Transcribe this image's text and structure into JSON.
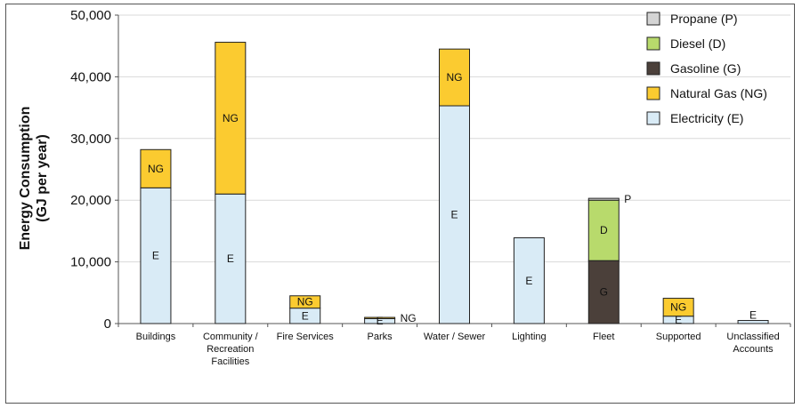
{
  "chart_data": {
    "type": "bar",
    "stacked": true,
    "ylabel_lines": [
      "Energy Consumption",
      "(GJ per year)"
    ],
    "ylim": [
      0,
      50000
    ],
    "yticks": [
      0,
      10000,
      20000,
      30000,
      40000,
      50000
    ],
    "ytick_labels": [
      "0",
      "10,000",
      "20,000",
      "30,000",
      "40,000",
      "50,000"
    ],
    "grid": true,
    "legend_position": "top-right",
    "categories": [
      [
        "Buildings"
      ],
      [
        "Community /",
        "Recreation",
        "Facilities"
      ],
      [
        "Fire Services"
      ],
      [
        "Parks"
      ],
      [
        "Water / Sewer"
      ],
      [
        "Lighting"
      ],
      [
        "Fleet"
      ],
      [
        "Supported"
      ],
      [
        "Unclassified",
        "Accounts"
      ]
    ],
    "series": [
      {
        "name": "Electricity (E)",
        "abbr": "E",
        "color": "#d9ebf6",
        "label_color": "#111111",
        "values": [
          22000,
          21000,
          2500,
          800,
          35300,
          13900,
          0,
          1200,
          500
        ]
      },
      {
        "name": "Natural Gas (NG)",
        "abbr": "NG",
        "color": "#fbcb30",
        "label_color": "#111111",
        "values": [
          6200,
          24600,
          2000,
          200,
          9200,
          0,
          0,
          2900,
          0
        ]
      },
      {
        "name": "Gasoline (G)",
        "abbr": "G",
        "color": "#4b403a",
        "label_color": "#ffffff",
        "values": [
          0,
          0,
          0,
          0,
          0,
          0,
          10200,
          0,
          0
        ]
      },
      {
        "name": "Diesel (D)",
        "abbr": "D",
        "color": "#b8da6c",
        "label_color": "#111111",
        "values": [
          0,
          0,
          0,
          0,
          0,
          0,
          9800,
          0,
          0
        ]
      },
      {
        "name": "Propane (P)",
        "abbr": "P",
        "color": "#d4d4d4",
        "label_color": "#111111",
        "values": [
          0,
          0,
          0,
          0,
          0,
          0,
          300,
          0,
          0
        ]
      }
    ],
    "legend_order": [
      "Propane (P)",
      "Diesel (D)",
      "Gasoline (G)",
      "Natural Gas (NG)",
      "Electricity (E)"
    ],
    "segment_labels": [
      {
        "category": 0,
        "series": "E",
        "text": "E"
      },
      {
        "category": 0,
        "series": "NG",
        "text": "NG"
      },
      {
        "category": 1,
        "series": "E",
        "text": "E"
      },
      {
        "category": 1,
        "series": "NG",
        "text": "NG"
      },
      {
        "category": 2,
        "series": "E",
        "text": "E"
      },
      {
        "category": 2,
        "series": "NG",
        "text": "NG"
      },
      {
        "category": 3,
        "series": "E",
        "text": "E"
      },
      {
        "category": 3,
        "series": "NG",
        "text": "NG",
        "outside": true
      },
      {
        "category": 4,
        "series": "E",
        "text": "E"
      },
      {
        "category": 4,
        "series": "NG",
        "text": "NG"
      },
      {
        "category": 5,
        "series": "E",
        "text": "E"
      },
      {
        "category": 6,
        "series": "G",
        "text": "G"
      },
      {
        "category": 6,
        "series": "D",
        "text": "D"
      },
      {
        "category": 6,
        "series": "P",
        "text": "P",
        "outside": true
      },
      {
        "category": 7,
        "series": "E",
        "text": "E"
      },
      {
        "category": 7,
        "series": "NG",
        "text": "NG"
      },
      {
        "category": 8,
        "series": "E",
        "text": "E",
        "above": true
      }
    ]
  }
}
